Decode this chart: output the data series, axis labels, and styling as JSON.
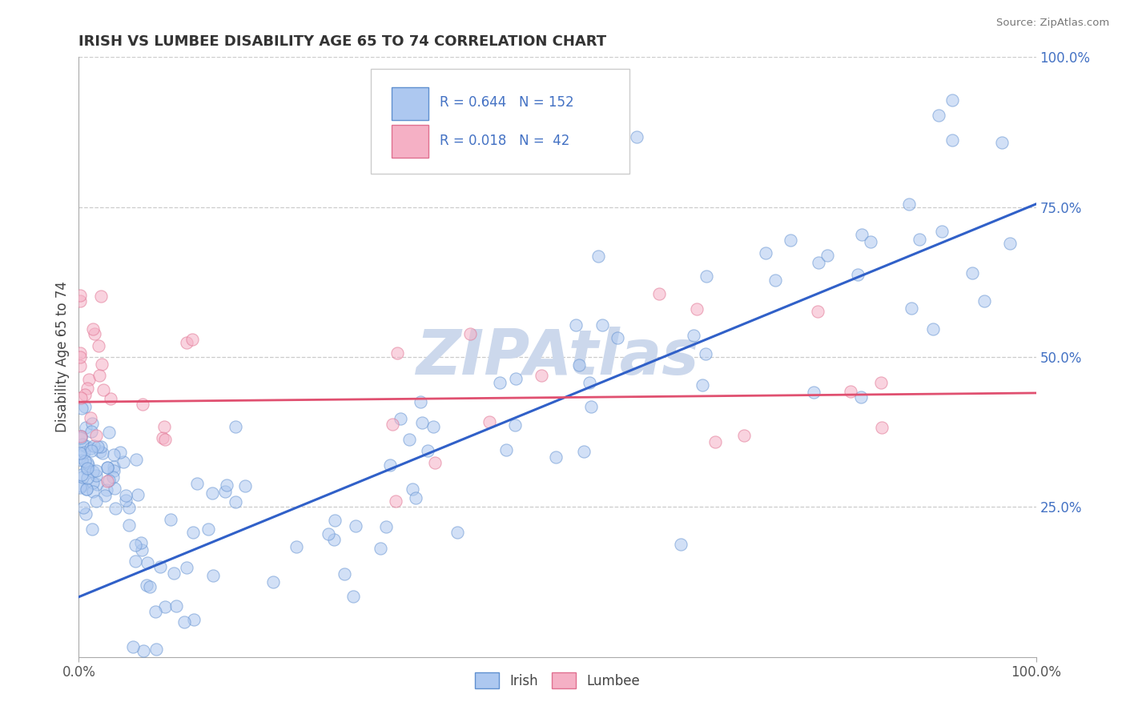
{
  "title": "IRISH VS LUMBEE DISABILITY AGE 65 TO 74 CORRELATION CHART",
  "source_text": "Source: ZipAtlas.com",
  "ylabel": "Disability Age 65 to 74",
  "ytick_labels": [
    "25.0%",
    "50.0%",
    "75.0%",
    "100.0%"
  ],
  "ytick_values": [
    0.25,
    0.5,
    0.75,
    1.0
  ],
  "legend_irish_R": "0.644",
  "legend_irish_N": "152",
  "legend_lumbee_R": "0.018",
  "legend_lumbee_N": " 42",
  "irish_color": "#adc8f0",
  "lumbee_color": "#f5b0c5",
  "irish_edge_color": "#6090d0",
  "lumbee_edge_color": "#e07090",
  "irish_trend_color": "#3060c8",
  "lumbee_trend_color": "#e05070",
  "grid_color": "#cccccc",
  "title_color": "#333333",
  "legend_text_color": "#4472c4",
  "watermark_color": "#ccd8ec",
  "watermark_text": "ZIPAtlas",
  "background_color": "#ffffff",
  "irish_trend_x0": 0.0,
  "irish_trend_y0": 0.1,
  "irish_trend_x1": 1.0,
  "irish_trend_y1": 0.755,
  "lumbee_trend_x0": 0.0,
  "lumbee_trend_y0": 0.425,
  "lumbee_trend_x1": 1.0,
  "lumbee_trend_y1": 0.44,
  "xlim": [
    0.0,
    1.0
  ],
  "ylim": [
    0.0,
    1.0
  ]
}
